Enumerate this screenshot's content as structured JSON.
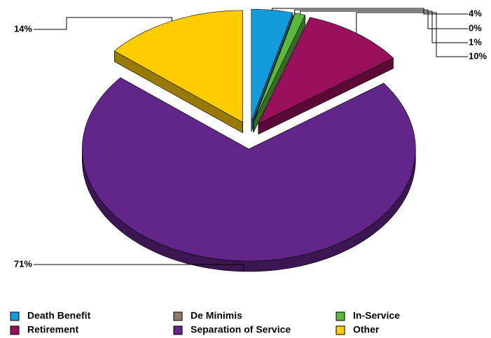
{
  "chart_data": {
    "type": "pie",
    "categories": [
      "Death Benefit",
      "De Minimis",
      "In-Service",
      "Retirement",
      "Separation of Service",
      "Other"
    ],
    "values": [
      4,
      0,
      1,
      10,
      71,
      14
    ],
    "value_labels": [
      "4%",
      "0%",
      "1%",
      "10%",
      "71%",
      "14%"
    ],
    "colors": [
      "#149bdc",
      "#8c7b6b",
      "#5cb83c",
      "#990f5c",
      "#62258a",
      "#ffcc00"
    ],
    "legend": "bottom"
  }
}
